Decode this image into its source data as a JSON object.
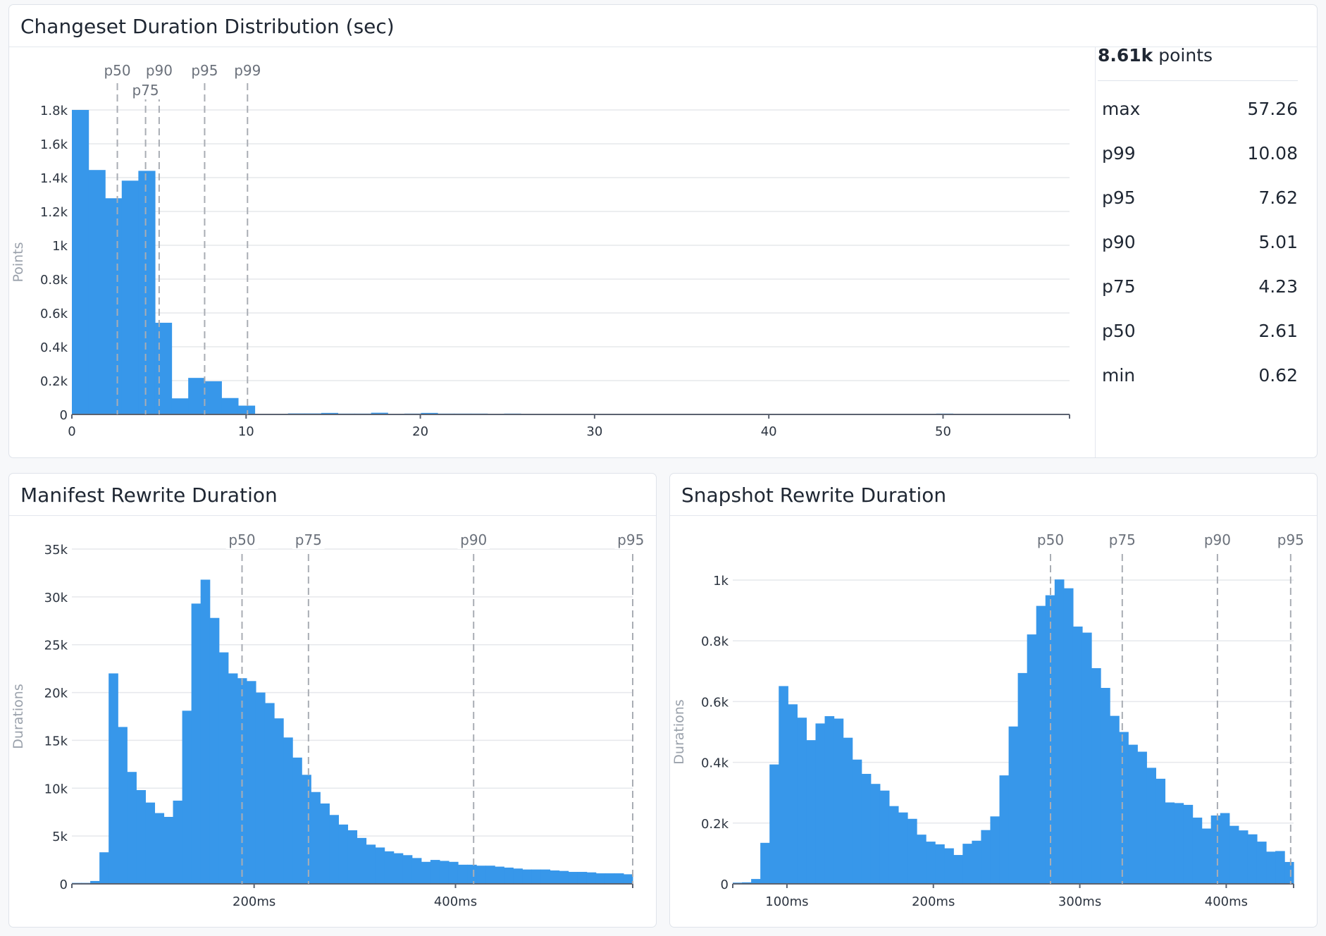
{
  "colors": {
    "bar": "#3797ea",
    "grid": "#e6e8ec",
    "axis": "#5b6270",
    "marker": "#a9adb4"
  },
  "stats": {
    "count": "8.61k",
    "count_suffix": "points",
    "rows": [
      {
        "label": "max",
        "value": "57.26"
      },
      {
        "label": "p99",
        "value": "10.08"
      },
      {
        "label": "p95",
        "value": "7.62"
      },
      {
        "label": "p90",
        "value": "5.01"
      },
      {
        "label": "p75",
        "value": "4.23"
      },
      {
        "label": "p50",
        "value": "2.61"
      },
      {
        "label": "min",
        "value": "0.62"
      }
    ]
  },
  "chart_data": [
    {
      "type": "bar",
      "title": "Changeset Duration Distribution (sec)",
      "ylabel": "Points",
      "xlim": [
        0,
        57.26
      ],
      "ylim": [
        0,
        1800
      ],
      "grid": true,
      "bin_start": 0,
      "bin_width": 0.954,
      "values": [
        1800,
        1445,
        1278,
        1382,
        1440,
        542,
        95,
        216,
        196,
        97,
        52,
        0,
        0,
        6,
        6,
        9,
        5,
        5,
        10,
        0,
        5,
        9,
        5,
        5,
        5,
        0,
        5,
        0,
        0,
        0,
        0,
        0,
        0,
        0,
        0,
        0,
        0,
        0,
        0,
        0,
        0,
        0,
        0,
        0,
        0,
        0,
        0,
        0,
        0,
        0,
        0,
        0,
        5,
        0,
        0,
        0,
        0,
        0,
        0,
        0
      ],
      "x_ticks": [
        {
          "v": 0,
          "label": "0"
        },
        {
          "v": 10,
          "label": "10"
        },
        {
          "v": 20,
          "label": "20"
        },
        {
          "v": 30,
          "label": "30"
        },
        {
          "v": 40,
          "label": "40"
        },
        {
          "v": 50,
          "label": "50"
        }
      ],
      "y_ticks": [
        {
          "v": 0,
          "label": "0"
        },
        {
          "v": 200,
          "label": "0.2k"
        },
        {
          "v": 400,
          "label": "0.4k"
        },
        {
          "v": 600,
          "label": "0.6k"
        },
        {
          "v": 800,
          "label": "0.8k"
        },
        {
          "v": 1000,
          "label": "1k"
        },
        {
          "v": 1200,
          "label": "1.2k"
        },
        {
          "v": 1400,
          "label": "1.4k"
        },
        {
          "v": 1600,
          "label": "1.6k"
        },
        {
          "v": 1800,
          "label": "1.8k"
        }
      ],
      "percentiles": [
        {
          "label": "p50",
          "value": 2.61
        },
        {
          "label": "p75",
          "value": 4.23
        },
        {
          "label": "p90",
          "value": 5.01
        },
        {
          "label": "p95",
          "value": 7.62
        },
        {
          "label": "p99",
          "value": 10.08
        }
      ]
    },
    {
      "type": "bar",
      "title": "Manifest Rewrite Duration",
      "ylabel": "Durations",
      "xlim": [
        19,
        576
      ],
      "ylim": [
        0,
        35000
      ],
      "grid": true,
      "bin_start": 19,
      "bin_width": 9.13,
      "values": [
        100,
        100,
        300,
        3300,
        22000,
        16400,
        11700,
        9800,
        8500,
        7400,
        7000,
        8700,
        18100,
        29300,
        31800,
        27800,
        24200,
        22000,
        21500,
        21200,
        20000,
        18900,
        17300,
        15300,
        13200,
        11400,
        9600,
        8400,
        7200,
        6200,
        5600,
        4800,
        4100,
        3800,
        3400,
        3200,
        3000,
        2700,
        2300,
        2500,
        2400,
        2300,
        2000,
        2000,
        1900,
        1900,
        1800,
        1700,
        1600,
        1500,
        1500,
        1500,
        1400,
        1350,
        1250,
        1250,
        1200,
        1100,
        1100,
        1100,
        1000
      ],
      "x_ticks": [
        {
          "v": 200,
          "label": "200ms"
        },
        {
          "v": 400,
          "label": "400ms"
        }
      ],
      "y_ticks": [
        {
          "v": 0,
          "label": "0"
        },
        {
          "v": 5000,
          "label": "5k"
        },
        {
          "v": 10000,
          "label": "10k"
        },
        {
          "v": 15000,
          "label": "15k"
        },
        {
          "v": 20000,
          "label": "20k"
        },
        {
          "v": 25000,
          "label": "25k"
        },
        {
          "v": 30000,
          "label": "30k"
        },
        {
          "v": 35000,
          "label": "35k"
        }
      ],
      "percentiles": [
        {
          "label": "p50",
          "value": 188
        },
        {
          "label": "p75",
          "value": 254
        },
        {
          "label": "p90",
          "value": 418
        },
        {
          "label": "p95",
          "value": 576
        }
      ]
    },
    {
      "type": "bar",
      "title": "Snapshot Rewrite Duration",
      "ylabel": "Durations",
      "xlim": [
        63,
        446
      ],
      "ylim": [
        0,
        1000
      ],
      "grid": true,
      "bin_start": 63,
      "bin_width": 6.28,
      "values": [
        4,
        5,
        16,
        135,
        393,
        651,
        591,
        547,
        473,
        528,
        552,
        544,
        481,
        409,
        362,
        329,
        307,
        256,
        235,
        214,
        162,
        139,
        130,
        117,
        95,
        132,
        142,
        177,
        222,
        357,
        518,
        694,
        821,
        915,
        950,
        1002,
        973,
        847,
        827,
        710,
        645,
        553,
        500,
        458,
        435,
        382,
        346,
        268,
        266,
        260,
        218,
        182,
        225,
        233,
        191,
        176,
        163,
        139,
        106,
        108,
        72
      ],
      "x_ticks": [
        {
          "v": 100,
          "label": "100ms"
        },
        {
          "v": 200,
          "label": "200ms"
        },
        {
          "v": 300,
          "label": "300ms"
        },
        {
          "v": 400,
          "label": "400ms"
        }
      ],
      "y_ticks": [
        {
          "v": 0,
          "label": "0"
        },
        {
          "v": 200,
          "label": "0.2k"
        },
        {
          "v": 400,
          "label": "0.4k"
        },
        {
          "v": 600,
          "label": "0.6k"
        },
        {
          "v": 800,
          "label": "0.8k"
        },
        {
          "v": 1000,
          "label": "1k"
        }
      ],
      "percentiles": [
        {
          "label": "p50",
          "value": 280
        },
        {
          "label": "p75",
          "value": 329
        },
        {
          "label": "p90",
          "value": 394
        },
        {
          "label": "p95",
          "value": 444
        }
      ]
    }
  ]
}
